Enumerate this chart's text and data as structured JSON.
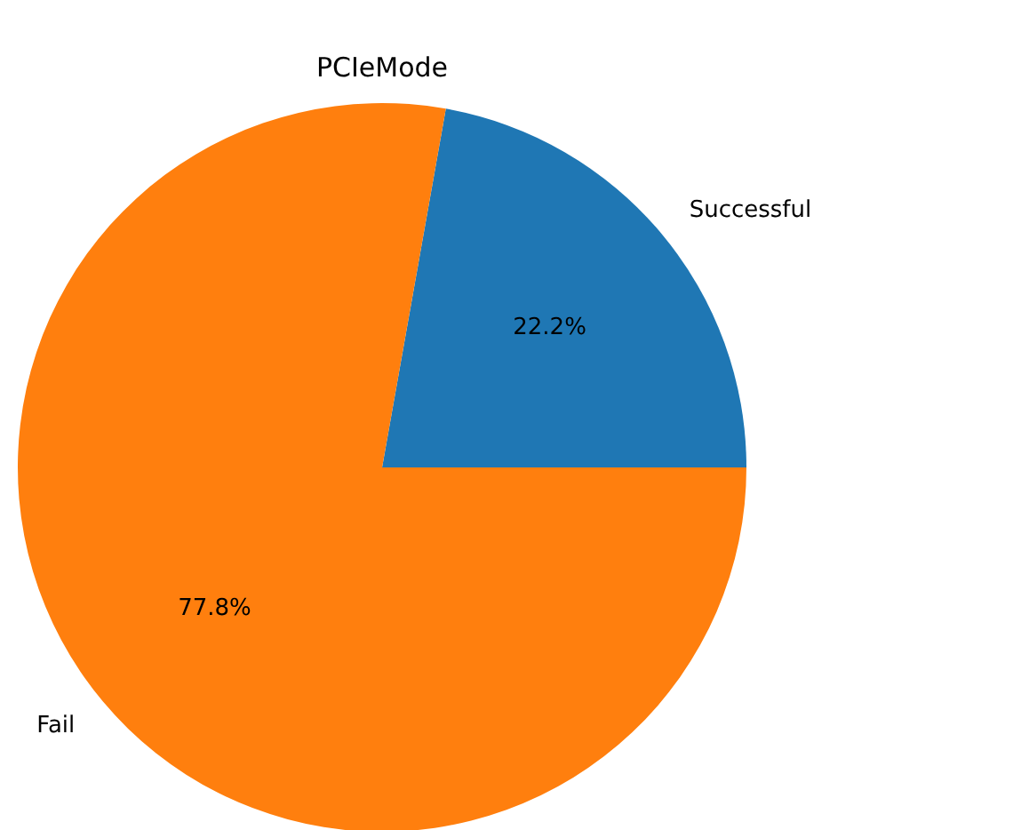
{
  "chart_data": {
    "type": "pie",
    "title": "PCIeMode",
    "categories": [
      "Successful",
      "Fail"
    ],
    "values": [
      22.2,
      77.8
    ],
    "colors": [
      "#1f77b4",
      "#ff7f0e"
    ],
    "value_labels": [
      "22.2%",
      "77.8%"
    ],
    "legend": false
  }
}
